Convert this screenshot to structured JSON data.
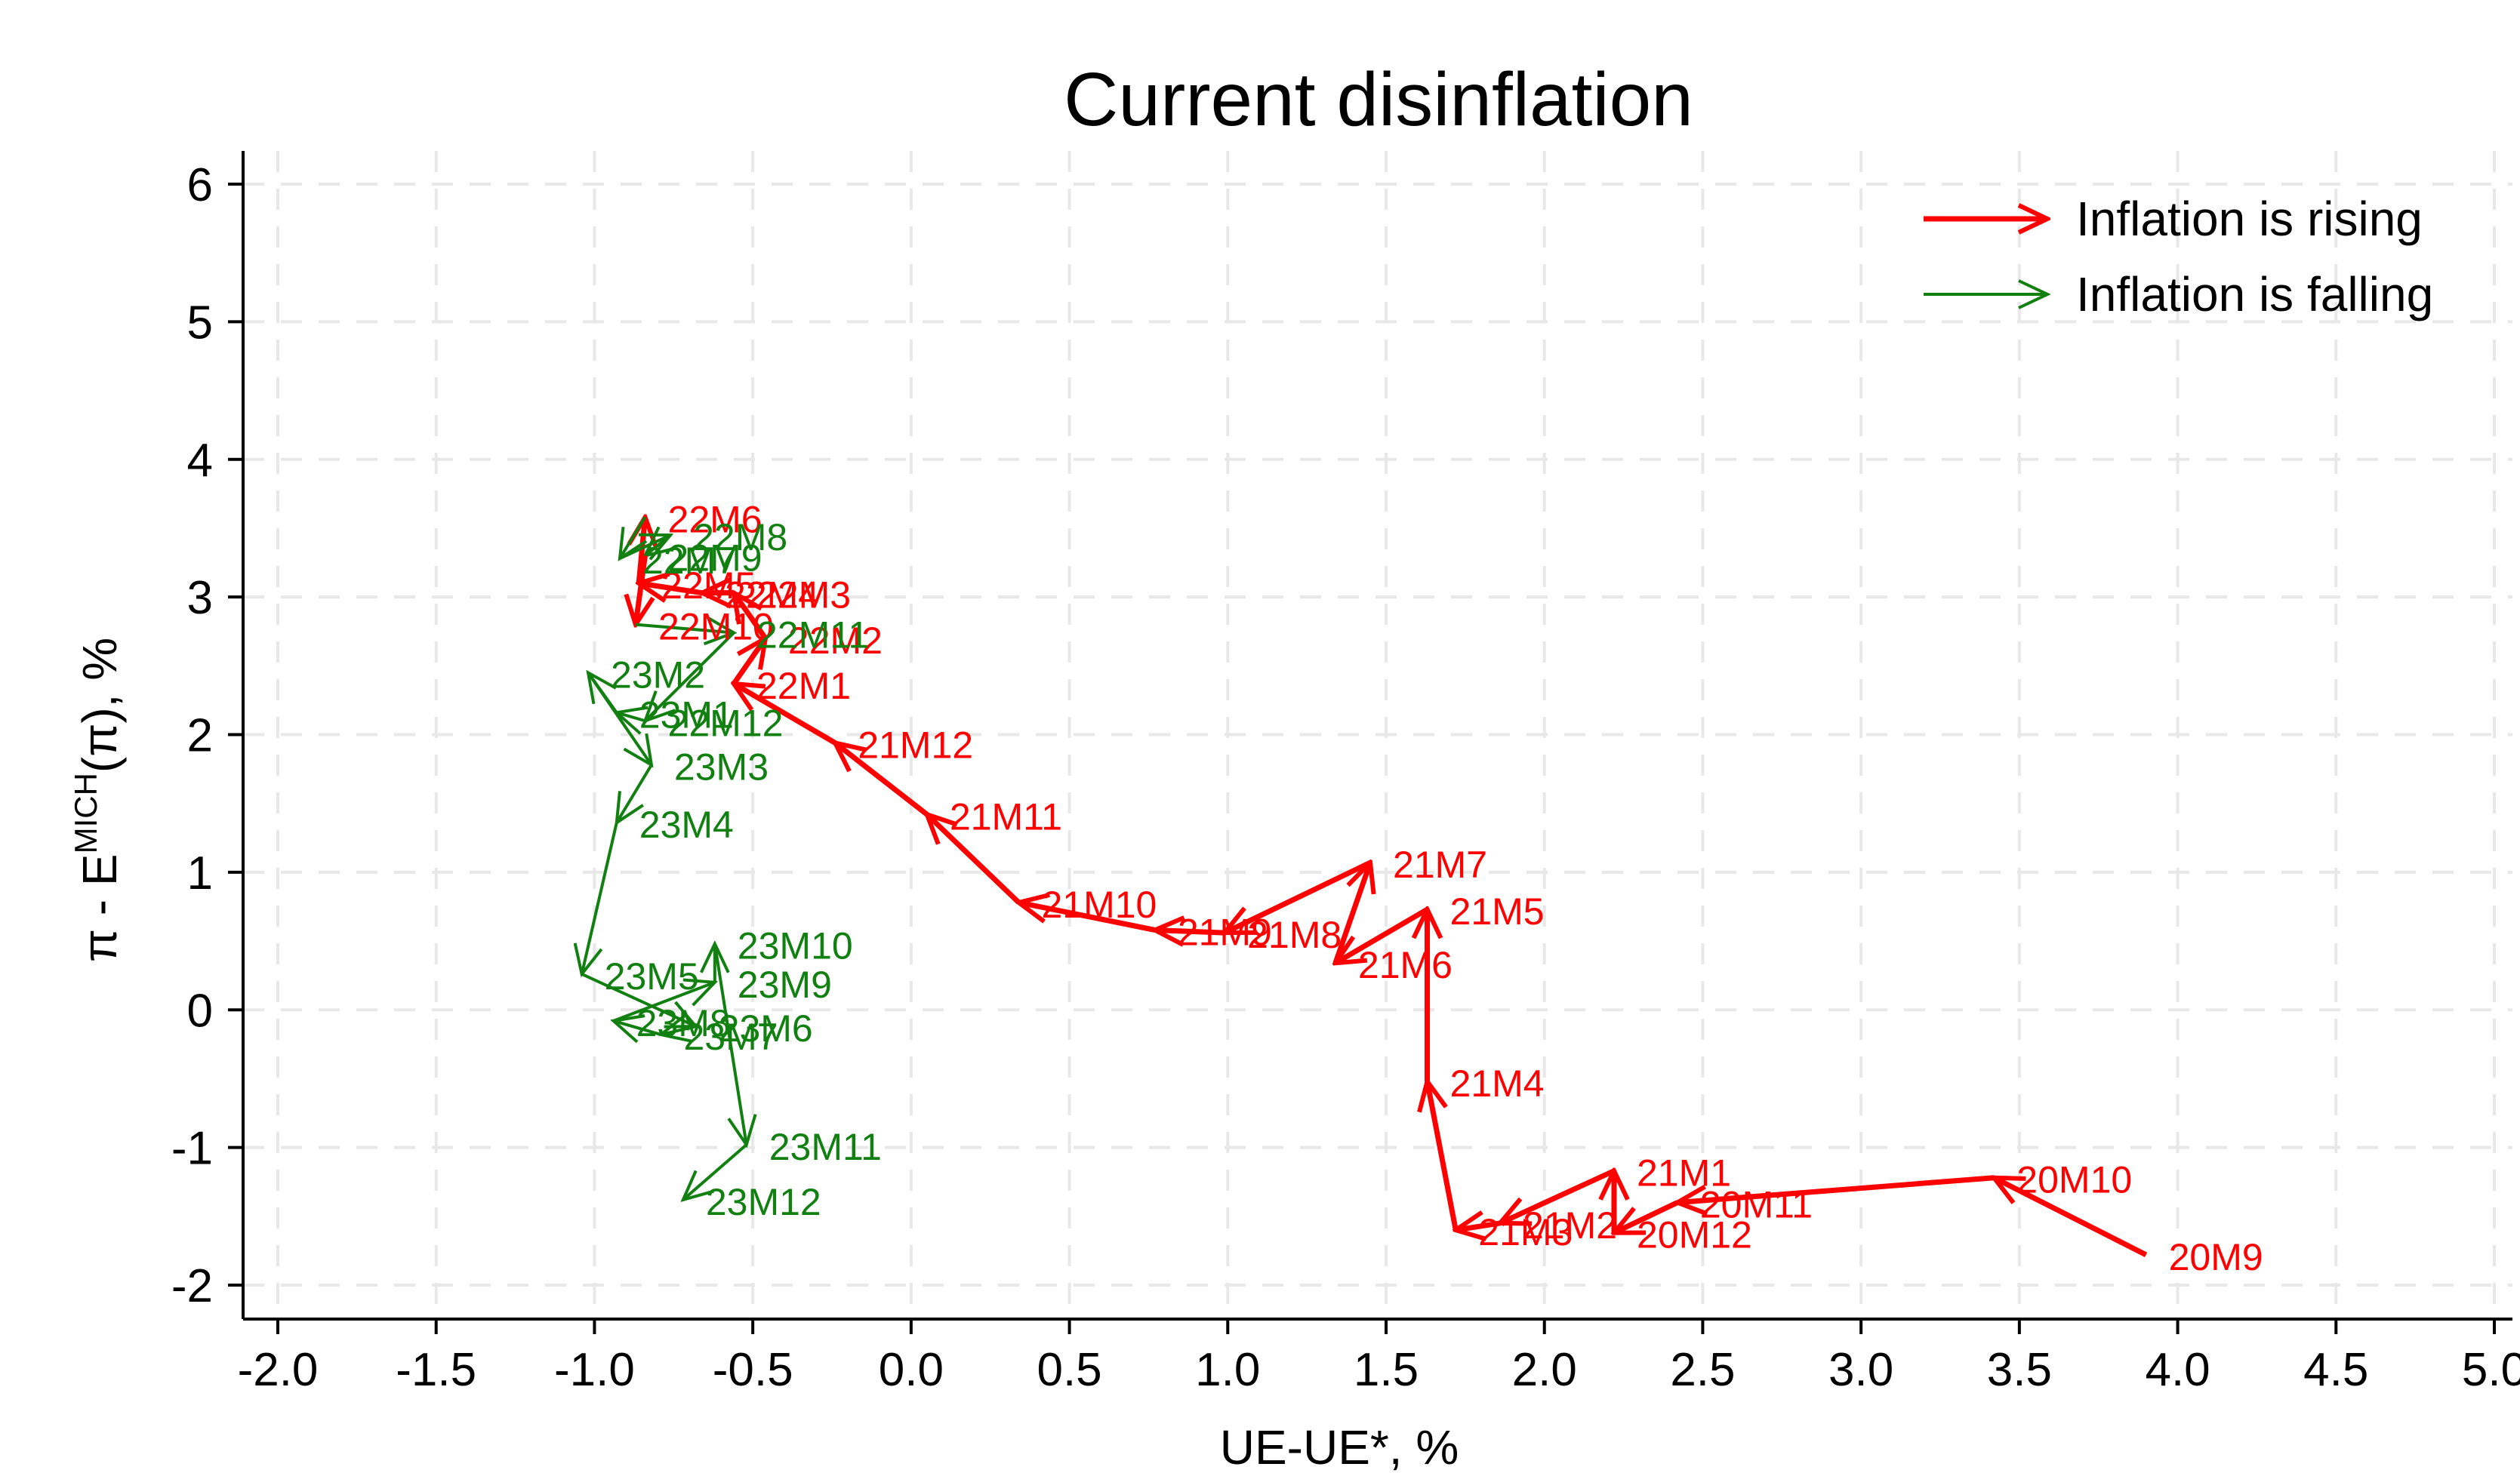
{
  "chart_data": {
    "type": "line",
    "title": "Current disinflation",
    "xlabel": "UE-UE*, %",
    "ylabel": {
      "main": "π - E",
      "superscript": "MICH",
      "suffix": "(π), %"
    },
    "xlim": [
      -2.0,
      5.0
    ],
    "ylim": [
      -2,
      6
    ],
    "xticks": [
      "-2.0",
      "-1.5",
      "-1.0",
      "-0.5",
      "0.0",
      "0.5",
      "1.0",
      "1.5",
      "2.0",
      "2.5",
      "3.0",
      "3.5",
      "4.0",
      "4.5",
      "5.0"
    ],
    "yticks": [
      "-2",
      "-1",
      "0",
      "1",
      "2",
      "3",
      "4",
      "5",
      "6"
    ],
    "grid": true,
    "legend_position": "top-right",
    "colors": {
      "rising": "#ff0000",
      "falling": "#118011"
    },
    "legend": [
      {
        "key": "rising",
        "label": "Inflation is rising"
      },
      {
        "key": "falling",
        "label": "Inflation is falling"
      }
    ],
    "points": [
      {
        "label": "20M9",
        "x": 3.9,
        "y": -1.78
      },
      {
        "label": "20M10",
        "x": 3.42,
        "y": -1.22
      },
      {
        "label": "20M11",
        "x": 2.42,
        "y": -1.4
      },
      {
        "label": "20M12",
        "x": 2.22,
        "y": -1.62
      },
      {
        "label": "21M1",
        "x": 2.22,
        "y": -1.17
      },
      {
        "label": "21M2",
        "x": 1.86,
        "y": -1.55
      },
      {
        "label": "21M3",
        "x": 1.72,
        "y": -1.6
      },
      {
        "label": "21M4",
        "x": 1.63,
        "y": -0.52
      },
      {
        "label": "21M5",
        "x": 1.63,
        "y": 0.73
      },
      {
        "label": "21M6",
        "x": 1.34,
        "y": 0.34
      },
      {
        "label": "21M7",
        "x": 1.45,
        "y": 1.07
      },
      {
        "label": "21M8",
        "x": 0.99,
        "y": 0.56
      },
      {
        "label": "21M9",
        "x": 0.77,
        "y": 0.58
      },
      {
        "label": "21M10",
        "x": 0.34,
        "y": 0.78
      },
      {
        "label": "21M11",
        "x": 0.05,
        "y": 1.42
      },
      {
        "label": "21M12",
        "x": -0.24,
        "y": 1.94
      },
      {
        "label": "22M1",
        "x": -0.56,
        "y": 2.37
      },
      {
        "label": "22M2",
        "x": -0.46,
        "y": 2.7
      },
      {
        "label": "22M3",
        "x": -0.56,
        "y": 3.03
      },
      {
        "label": "22M4",
        "x": -0.66,
        "y": 3.03
      },
      {
        "label": "22M5",
        "x": -0.86,
        "y": 3.1
      },
      {
        "label": "22M6",
        "x": -0.84,
        "y": 3.58
      },
      {
        "label": "22M7",
        "x": -0.92,
        "y": 3.28
      },
      {
        "label": "22M8",
        "x": -0.76,
        "y": 3.45
      },
      {
        "label": "22M9",
        "x": -0.84,
        "y": 3.3
      },
      {
        "label": "22M10",
        "x": -0.87,
        "y": 2.8
      },
      {
        "label": "22M11",
        "x": -0.56,
        "y": 2.74
      },
      {
        "label": "22M12",
        "x": -0.84,
        "y": 2.1
      },
      {
        "label": "23M1",
        "x": -0.93,
        "y": 2.16
      },
      {
        "label": "23M2",
        "x": -1.02,
        "y": 2.45
      },
      {
        "label": "23M3",
        "x": -0.82,
        "y": 1.78
      },
      {
        "label": "23M4",
        "x": -0.93,
        "y": 1.36
      },
      {
        "label": "23M5",
        "x": -1.04,
        "y": 0.26
      },
      {
        "label": "23M6",
        "x": -0.68,
        "y": -0.12
      },
      {
        "label": "23M7",
        "x": -0.79,
        "y": -0.18
      },
      {
        "label": "23M8",
        "x": -0.94,
        "y": -0.08
      },
      {
        "label": "23M9",
        "x": -0.62,
        "y": 0.2
      },
      {
        "label": "23M10",
        "x": -0.62,
        "y": 0.48
      },
      {
        "label": "23M11",
        "x": -0.52,
        "y": -0.98
      },
      {
        "label": "23M12",
        "x": -0.72,
        "y": -1.38
      }
    ],
    "segments": [
      {
        "from": "20M9",
        "to": "20M10",
        "trend": "rising"
      },
      {
        "from": "20M10",
        "to": "20M11",
        "trend": "rising"
      },
      {
        "from": "20M11",
        "to": "20M12",
        "trend": "rising"
      },
      {
        "from": "20M12",
        "to": "21M1",
        "trend": "rising"
      },
      {
        "from": "21M1",
        "to": "21M2",
        "trend": "rising"
      },
      {
        "from": "21M2",
        "to": "21M3",
        "trend": "rising"
      },
      {
        "from": "21M3",
        "to": "21M4",
        "trend": "rising"
      },
      {
        "from": "21M4",
        "to": "21M5",
        "trend": "rising"
      },
      {
        "from": "21M5",
        "to": "21M6",
        "trend": "rising"
      },
      {
        "from": "21M6",
        "to": "21M7",
        "trend": "rising"
      },
      {
        "from": "21M7",
        "to": "21M8",
        "trend": "rising"
      },
      {
        "from": "21M8",
        "to": "21M9",
        "trend": "rising"
      },
      {
        "from": "21M9",
        "to": "21M10",
        "trend": "rising"
      },
      {
        "from": "21M10",
        "to": "21M11",
        "trend": "rising"
      },
      {
        "from": "21M11",
        "to": "21M12",
        "trend": "rising"
      },
      {
        "from": "21M12",
        "to": "22M1",
        "trend": "rising"
      },
      {
        "from": "22M1",
        "to": "22M2",
        "trend": "rising"
      },
      {
        "from": "22M2",
        "to": "22M3",
        "trend": "rising"
      },
      {
        "from": "22M3",
        "to": "22M4",
        "trend": "rising"
      },
      {
        "from": "22M4",
        "to": "22M5",
        "trend": "rising"
      },
      {
        "from": "22M5",
        "to": "22M6",
        "trend": "rising"
      },
      {
        "from": "22M6",
        "to": "22M7",
        "trend": "falling"
      },
      {
        "from": "22M7",
        "to": "22M8",
        "trend": "falling"
      },
      {
        "from": "22M8",
        "to": "22M9",
        "trend": "falling"
      },
      {
        "from": "22M9",
        "to": "22M10",
        "trend": "rising"
      },
      {
        "from": "22M10",
        "to": "22M11",
        "trend": "falling"
      },
      {
        "from": "22M11",
        "to": "22M12",
        "trend": "falling"
      },
      {
        "from": "22M12",
        "to": "23M1",
        "trend": "falling"
      },
      {
        "from": "23M1",
        "to": "23M2",
        "trend": "falling"
      },
      {
        "from": "23M2",
        "to": "23M3",
        "trend": "falling"
      },
      {
        "from": "23M3",
        "to": "23M4",
        "trend": "falling"
      },
      {
        "from": "23M4",
        "to": "23M5",
        "trend": "falling"
      },
      {
        "from": "23M5",
        "to": "23M6",
        "trend": "falling"
      },
      {
        "from": "23M6",
        "to": "23M7",
        "trend": "falling"
      },
      {
        "from": "23M7",
        "to": "23M8",
        "trend": "falling"
      },
      {
        "from": "23M8",
        "to": "23M9",
        "trend": "falling"
      },
      {
        "from": "23M9",
        "to": "23M10",
        "trend": "falling"
      },
      {
        "from": "23M10",
        "to": "23M11",
        "trend": "falling"
      },
      {
        "from": "23M11",
        "to": "23M12",
        "trend": "falling"
      }
    ]
  }
}
